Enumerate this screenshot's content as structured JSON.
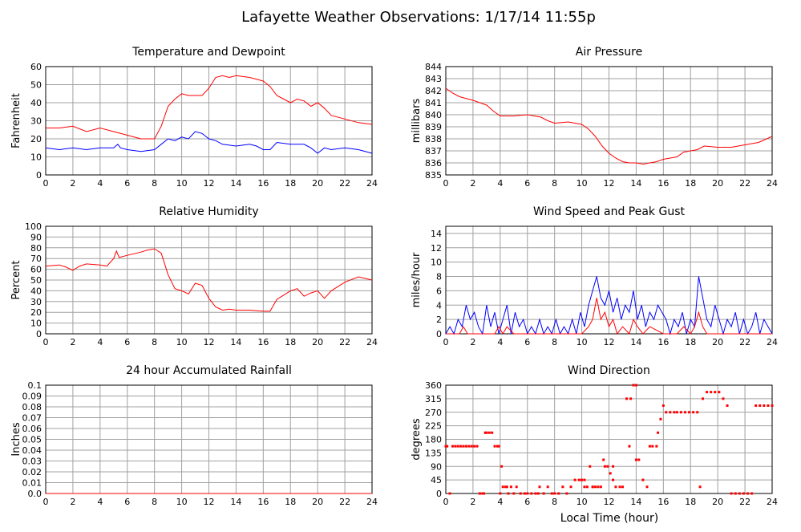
{
  "title": "Lafayette Weather Observations: 1/17/14 11:55p",
  "xlabel_bottom": "Local Time (hour)",
  "colors": {
    "red": "#ff0000",
    "blue": "#0000ff",
    "grid": "#a0a0a0",
    "axis": "#000000"
  },
  "chart_data": [
    {
      "id": "temp",
      "type": "line",
      "title": "Temperature and Dewpoint",
      "ylabel": "Fahrenheit",
      "xlim": [
        0,
        24
      ],
      "ylim": [
        0,
        60
      ],
      "x_ticks": [
        0,
        2,
        4,
        6,
        8,
        10,
        12,
        14,
        16,
        18,
        20,
        22,
        24
      ],
      "y_ticks": [
        0,
        10,
        20,
        30,
        40,
        50,
        60
      ],
      "series": [
        {
          "color": "#ff0000",
          "x": [
            0,
            1,
            2,
            3,
            4,
            5,
            6,
            7,
            7.5,
            8,
            8.5,
            9,
            9.5,
            10,
            10.5,
            11,
            11.5,
            12,
            12.5,
            13,
            13.5,
            14,
            15,
            16,
            16.5,
            17,
            17.5,
            18,
            18.5,
            19,
            19.5,
            20,
            20.5,
            21,
            22,
            23,
            24
          ],
          "y": [
            26,
            26,
            27,
            24,
            26,
            24,
            22,
            20,
            20,
            20,
            27,
            38,
            42,
            45,
            44,
            44,
            44,
            48,
            54,
            55,
            54,
            55,
            54,
            52,
            49,
            44,
            42,
            40,
            42,
            41,
            38,
            40,
            37,
            33,
            31,
            29,
            28
          ]
        },
        {
          "color": "#0000ff",
          "x": [
            0,
            1,
            2,
            3,
            4,
            5,
            5.3,
            5.5,
            6,
            7,
            8,
            8.5,
            9,
            9.5,
            10,
            10.5,
            11,
            11.5,
            12,
            12.5,
            13,
            14,
            15,
            15.5,
            16,
            16.5,
            17,
            18,
            19,
            19.5,
            20,
            20.5,
            21,
            22,
            23,
            24
          ],
          "y": [
            15,
            14,
            15,
            14,
            15,
            15,
            17,
            15,
            14,
            13,
            14,
            17,
            20,
            19,
            21,
            20,
            24,
            23,
            20,
            19,
            17,
            16,
            17,
            16,
            14,
            14,
            18,
            17,
            17,
            15,
            12,
            15,
            14,
            15,
            14,
            12
          ]
        }
      ]
    },
    {
      "id": "pressure",
      "type": "line",
      "title": "Air Pressure",
      "ylabel": "millibars",
      "xlim": [
        0,
        24
      ],
      "ylim": [
        835,
        844
      ],
      "x_ticks": [
        0,
        2,
        4,
        6,
        8,
        10,
        12,
        14,
        16,
        18,
        20,
        22,
        24
      ],
      "y_ticks": [
        835,
        836,
        837,
        838,
        839,
        840,
        841,
        842,
        843,
        844
      ],
      "series": [
        {
          "color": "#ff0000",
          "x": [
            0,
            0.5,
            1,
            2,
            3,
            3.5,
            4,
            5,
            6,
            7,
            7.5,
            8,
            9,
            10,
            10.5,
            11,
            11.5,
            12,
            12.5,
            13,
            13.5,
            14,
            14.5,
            15,
            15.5,
            16,
            16.5,
            17,
            17.5,
            18,
            18.5,
            19,
            20,
            21,
            22,
            23,
            24
          ],
          "y": [
            842.2,
            841.8,
            841.5,
            841.2,
            840.8,
            840.3,
            839.9,
            839.9,
            840.0,
            839.8,
            839.5,
            839.3,
            839.4,
            839.2,
            838.8,
            838.2,
            837.4,
            836.8,
            836.4,
            836.1,
            836.0,
            836.0,
            835.9,
            836.0,
            836.1,
            836.3,
            836.4,
            836.5,
            836.9,
            837.0,
            837.1,
            837.4,
            837.3,
            837.3,
            837.5,
            837.7,
            838.2
          ]
        }
      ]
    },
    {
      "id": "humidity",
      "type": "line",
      "title": "Relative Humidity",
      "ylabel": "Percent",
      "xlim": [
        0,
        24
      ],
      "ylim": [
        0,
        100
      ],
      "x_ticks": [
        0,
        2,
        4,
        6,
        8,
        10,
        12,
        14,
        16,
        18,
        20,
        22,
        24
      ],
      "y_ticks": [
        0,
        10,
        20,
        30,
        40,
        50,
        60,
        70,
        80,
        90,
        100
      ],
      "series": [
        {
          "color": "#ff0000",
          "x": [
            0,
            1,
            1.5,
            2,
            2.5,
            3,
            4,
            4.5,
            5,
            5.2,
            5.4,
            6,
            7,
            7.5,
            8,
            8.5,
            9,
            9.5,
            10,
            10.5,
            11,
            11.5,
            12,
            12.5,
            13,
            13.5,
            14,
            15,
            16,
            16.5,
            17,
            17.5,
            18,
            18.5,
            19,
            19.5,
            20,
            20.5,
            21,
            22,
            23,
            24
          ],
          "y": [
            63,
            64,
            62,
            59,
            63,
            65,
            64,
            63,
            70,
            77,
            71,
            73,
            76,
            78,
            79,
            75,
            55,
            42,
            40,
            37,
            47,
            45,
            33,
            25,
            22,
            23,
            22,
            22,
            21,
            21,
            32,
            36,
            40,
            42,
            35,
            38,
            40,
            33,
            40,
            48,
            53,
            50
          ]
        }
      ]
    },
    {
      "id": "wind",
      "type": "line",
      "title": "Wind Speed and Peak Gust",
      "ylabel": "miles/hour",
      "xlim": [
        0,
        24
      ],
      "ylim": [
        0,
        15
      ],
      "x_ticks": [
        0,
        2,
        4,
        6,
        8,
        10,
        12,
        14,
        16,
        18,
        20,
        22,
        24
      ],
      "y_ticks": [
        0,
        2,
        4,
        6,
        8,
        10,
        12,
        14
      ],
      "series": [
        {
          "color": "#0000ff",
          "x": [
            0,
            0.3,
            0.6,
            0.9,
            1.2,
            1.5,
            1.8,
            2.1,
            2.4,
            2.7,
            3.0,
            3.3,
            3.6,
            3.9,
            4.2,
            4.5,
            4.8,
            5.1,
            5.4,
            5.7,
            6.0,
            6.3,
            6.6,
            6.9,
            7.2,
            7.5,
            7.8,
            8.1,
            8.4,
            8.7,
            9.0,
            9.3,
            9.6,
            9.9,
            10.2,
            10.5,
            10.8,
            11.1,
            11.4,
            11.7,
            12.0,
            12.3,
            12.6,
            12.9,
            13.2,
            13.5,
            13.8,
            14.1,
            14.4,
            14.7,
            15.0,
            15.3,
            15.6,
            15.9,
            16.2,
            16.5,
            16.8,
            17.1,
            17.4,
            17.7,
            18.0,
            18.3,
            18.6,
            18.9,
            19.2,
            19.5,
            19.8,
            20.1,
            20.4,
            20.7,
            21.0,
            21.3,
            21.6,
            21.9,
            22.2,
            22.5,
            22.8,
            23.1,
            23.4,
            23.7,
            24
          ],
          "y": [
            0,
            1,
            0,
            2,
            1,
            4,
            2,
            3,
            1,
            0,
            4,
            1,
            3,
            0,
            2,
            4,
            0,
            3,
            1,
            2,
            0,
            1,
            0,
            2,
            0,
            1,
            0,
            2,
            0,
            1,
            0,
            2,
            0,
            3,
            1,
            4,
            6,
            8,
            5,
            4,
            6,
            3,
            5,
            2,
            4,
            3,
            6,
            2,
            4,
            1,
            3,
            2,
            4,
            3,
            2,
            0,
            2,
            1,
            3,
            0,
            2,
            1,
            8,
            5,
            2,
            1,
            4,
            2,
            0,
            2,
            1,
            3,
            0,
            2,
            0,
            1,
            3,
            0,
            2,
            1,
            0
          ]
        },
        {
          "color": "#ff0000",
          "x": [
            0,
            1.0,
            1.3,
            1.6,
            2,
            3.6,
            3.9,
            4.2,
            4.5,
            5,
            10,
            10.5,
            10.8,
            11.1,
            11.4,
            11.7,
            12,
            12.3,
            12.6,
            13,
            13.5,
            13.8,
            14.1,
            14.5,
            15,
            16,
            17,
            17.5,
            18,
            18.3,
            18.6,
            18.9,
            19.2,
            20,
            24
          ],
          "y": [
            0,
            0,
            1,
            0,
            0,
            0,
            1,
            0,
            1,
            0,
            0,
            1,
            2,
            5,
            2,
            3,
            1,
            2,
            0,
            1,
            0,
            2,
            1,
            0,
            1,
            0,
            0,
            1,
            0,
            1,
            3,
            1,
            0,
            0,
            0
          ]
        }
      ]
    },
    {
      "id": "rain",
      "type": "line",
      "title": "24 hour Accumulated Rainfall",
      "ylabel": "Inches",
      "xlim": [
        0,
        24
      ],
      "ylim": [
        0,
        0.1
      ],
      "x_ticks": [
        0,
        2,
        4,
        6,
        8,
        10,
        12,
        14,
        16,
        18,
        20,
        22,
        24
      ],
      "y_ticks": [
        0.0,
        0.01,
        0.02,
        0.03,
        0.04,
        0.05,
        0.06,
        0.07,
        0.08,
        0.09,
        0.1
      ],
      "y_tick_labels": [
        "0.0",
        "0.01",
        "0.02",
        "0.03",
        "0.04",
        "0.05",
        "0.06",
        "0.07",
        "0.08",
        "0.09",
        "0.1"
      ],
      "series": [
        {
          "color": "#ff0000",
          "x": [
            0,
            24
          ],
          "y": [
            0,
            0
          ]
        }
      ]
    },
    {
      "id": "direction",
      "type": "scatter",
      "title": "Wind Direction",
      "ylabel": "degrees",
      "xlabel": "Local Time (hour)",
      "xlim": [
        0,
        24
      ],
      "ylim": [
        0,
        360
      ],
      "x_ticks": [
        0,
        2,
        4,
        6,
        8,
        10,
        12,
        14,
        16,
        18,
        20,
        22,
        24
      ],
      "y_ticks": [
        0,
        45,
        90,
        135,
        180,
        225,
        270,
        315,
        360
      ],
      "series": [
        {
          "color": "#ff0000",
          "x": [
            0,
            0.1,
            0.3,
            0.5,
            0.7,
            0.9,
            1.1,
            1.3,
            1.5,
            1.7,
            1.9,
            2.1,
            2.3,
            2.5,
            2.7,
            2.9,
            3.0,
            3.2,
            3.4,
            3.6,
            3.8,
            3.9,
            4.0,
            4.1,
            4.2,
            4.4,
            4.5,
            4.6,
            4.8,
            5.0,
            5.2,
            5.5,
            5.8,
            6.0,
            6.3,
            6.6,
            6.9,
            7.2,
            7.5,
            7.8,
            8.0,
            8.3,
            8.6,
            8.9,
            9.2,
            9.5,
            9.8,
            10.0,
            10.2,
            10.4,
            10.6,
            10.8,
            11.0,
            11.2,
            11.4,
            11.6,
            11.7,
            11.9,
            12.1,
            12.3,
            12.5,
            12.8,
            13.0,
            13.3,
            13.6,
            13.8,
            14.0,
            14.2,
            14.5,
            14.8,
            15.0,
            15.2,
            15.5,
            15.6,
            15.8,
            16.0,
            16.2,
            16.5,
            16.8,
            17.0,
            17.3,
            17.6,
            17.9,
            18.2,
            18.5,
            18.7,
            18.9,
            19.2,
            19.5,
            19.8,
            20.1,
            20.4,
            20.7,
            21.0,
            21.3,
            21.6,
            21.9,
            22.2,
            22.5,
            22.8,
            23.1,
            23.4,
            23.7,
            24.0,
            2.5,
            2.8,
            6.8,
            10.2,
            10.8,
            12.3,
            13.5,
            14.0
          ],
          "y": [
            157,
            157,
            0,
            157,
            157,
            157,
            157,
            157,
            157,
            157,
            157,
            157,
            157,
            0,
            0,
            202,
            202,
            202,
            202,
            157,
            157,
            157,
            0,
            90,
            22,
            22,
            22,
            0,
            22,
            0,
            22,
            0,
            0,
            0,
            0,
            0,
            22,
            0,
            22,
            0,
            0,
            0,
            22,
            0,
            22,
            45,
            45,
            45,
            45,
            22,
            90,
            22,
            22,
            22,
            22,
            112,
            90,
            90,
            67,
            45,
            22,
            22,
            22,
            315,
            315,
            360,
            112,
            112,
            45,
            22,
            157,
            157,
            157,
            202,
            247,
            292,
            270,
            270,
            270,
            270,
            270,
            270,
            270,
            270,
            270,
            22,
            315,
            337,
            337,
            337,
            337,
            315,
            292,
            0,
            0,
            0,
            0,
            0,
            0,
            292,
            292,
            292,
            292,
            292,
            0,
            0,
            0,
            22,
            22,
            90,
            157,
            360
          ]
        }
      ]
    }
  ]
}
